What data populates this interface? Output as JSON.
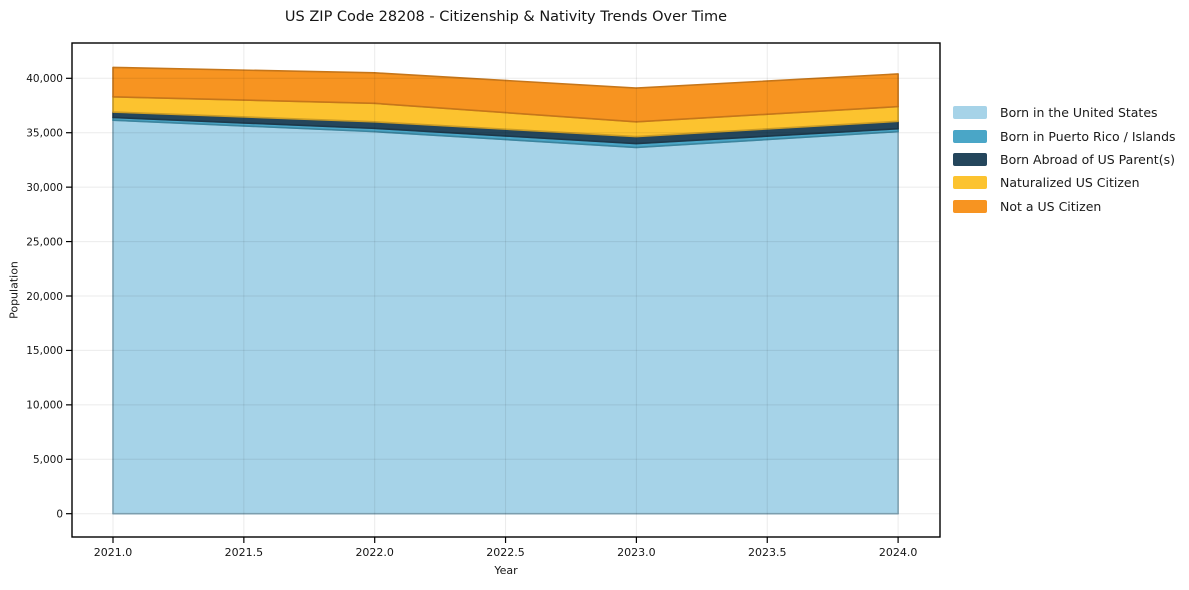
{
  "title": "US ZIP Code 28208 - Citizenship & Nativity Trends Over Time",
  "axes": {
    "x": {
      "label": "Year",
      "ticks": [
        {
          "v": 2021.0,
          "label": "2021.0"
        },
        {
          "v": 2021.5,
          "label": "2021.5"
        },
        {
          "v": 2022.0,
          "label": "2022.0"
        },
        {
          "v": 2022.5,
          "label": "2022.5"
        },
        {
          "v": 2023.0,
          "label": "2023.0"
        },
        {
          "v": 2023.5,
          "label": "2023.5"
        },
        {
          "v": 2024.0,
          "label": "2024.0"
        }
      ]
    },
    "y": {
      "label": "Population",
      "ticks": [
        {
          "v": 0,
          "label": "0"
        },
        {
          "v": 5000,
          "label": "5,000"
        },
        {
          "v": 10000,
          "label": "10,000"
        },
        {
          "v": 15000,
          "label": "15,000"
        },
        {
          "v": 20000,
          "label": "20,000"
        },
        {
          "v": 25000,
          "label": "25,000"
        },
        {
          "v": 30000,
          "label": "30,000"
        },
        {
          "v": 35000,
          "label": "35,000"
        },
        {
          "v": 40000,
          "label": "40,000"
        }
      ]
    }
  },
  "chart_data": {
    "type": "area",
    "stacked": true,
    "title": "US ZIP Code 28208 - Citizenship & Nativity Trends Over Time",
    "xlabel": "Year",
    "ylabel": "Population",
    "x": [
      2021,
      2022,
      2023,
      2024
    ],
    "series": [
      {
        "name": "Born in the United States",
        "color": "#A6D3E8",
        "values": [
          36150,
          35100,
          33650,
          35100
        ]
      },
      {
        "name": "Born in Puerto Rico / Islands",
        "color": "#4AA6C7",
        "values": [
          250,
          300,
          350,
          270
        ]
      },
      {
        "name": "Born Abroad of US Parent(s)",
        "color": "#24465C",
        "values": [
          500,
          600,
          650,
          680
        ]
      },
      {
        "name": "Naturalized US Citizen",
        "color": "#FCC32F",
        "values": [
          1400,
          1700,
          1350,
          1350
        ]
      },
      {
        "name": "Not a US Citizen",
        "color": "#F79421",
        "values": [
          2700,
          2800,
          3100,
          3000
        ]
      }
    ],
    "totals": [
      41000,
      40500,
      39100,
      40400
    ],
    "xlim": [
      2020.85,
      2024.15
    ],
    "ylim": [
      -2050,
      43050
    ],
    "grid": true,
    "legend_position": "outside-right-top",
    "background": "#ffffff",
    "spine_color": "#000000"
  }
}
